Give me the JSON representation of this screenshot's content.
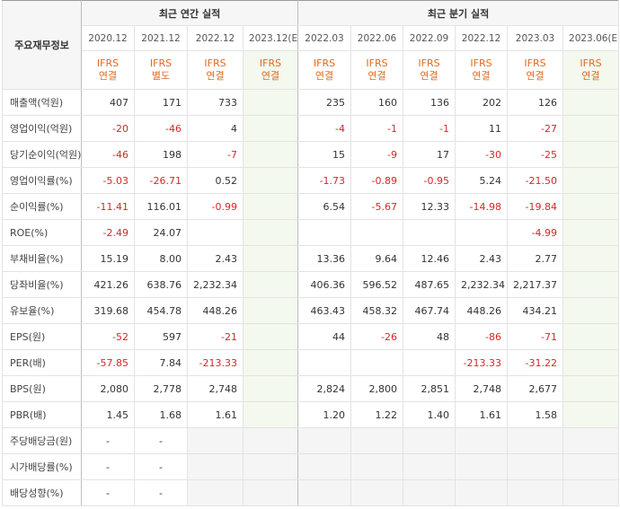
{
  "header": {
    "row_label": "주요재무정보",
    "annual_title": "최근 연간 실적",
    "quarter_title": "최근 분기 실적",
    "annual_periods": [
      {
        "date": "2020.12",
        "l1": "IFRS",
        "l2": "연결"
      },
      {
        "date": "2021.12",
        "l1": "IFRS",
        "l2": "별도"
      },
      {
        "date": "2022.12",
        "l1": "IFRS",
        "l2": "연결"
      },
      {
        "date": "2023.12(E)",
        "l1": "IFRS",
        "l2": "연결"
      }
    ],
    "quarter_periods": [
      {
        "date": "2022.03",
        "l1": "IFRS",
        "l2": "연결"
      },
      {
        "date": "2022.06",
        "l1": "IFRS",
        "l2": "연결"
      },
      {
        "date": "2022.09",
        "l1": "IFRS",
        "l2": "연결"
      },
      {
        "date": "2022.12",
        "l1": "IFRS",
        "l2": "연결"
      },
      {
        "date": "2023.03",
        "l1": "IFRS",
        "l2": "연결"
      },
      {
        "date": "2023.06(E)",
        "l1": "IFRS",
        "l2": "연결"
      }
    ]
  },
  "rows": [
    {
      "label": "매출액(억원)",
      "values": [
        "407",
        "171",
        "733",
        "",
        "235",
        "160",
        "136",
        "202",
        "126",
        ""
      ]
    },
    {
      "label": "영업이익(억원)",
      "values": [
        "-20",
        "-46",
        "4",
        "",
        "-4",
        "-1",
        "-1",
        "11",
        "-27",
        ""
      ]
    },
    {
      "label": "당기순이익(억원)",
      "values": [
        "-46",
        "198",
        "-7",
        "",
        "15",
        "-9",
        "17",
        "-30",
        "-25",
        ""
      ]
    },
    {
      "label": "영업이익률(%)",
      "values": [
        "-5.03",
        "-26.71",
        "0.52",
        "",
        "-1.73",
        "-0.89",
        "-0.95",
        "5.24",
        "-21.50",
        ""
      ]
    },
    {
      "label": "순이익률(%)",
      "values": [
        "-11.41",
        "116.01",
        "-0.99",
        "",
        "6.54",
        "-5.67",
        "12.33",
        "-14.98",
        "-19.84",
        ""
      ]
    },
    {
      "label": "ROE(%)",
      "values": [
        "-2.49",
        "24.07",
        "",
        "",
        "",
        "",
        "",
        "",
        "-4.99",
        ""
      ]
    },
    {
      "label": "부채비율(%)",
      "values": [
        "15.19",
        "8.00",
        "2.43",
        "",
        "13.36",
        "9.64",
        "12.46",
        "2.43",
        "2.77",
        ""
      ]
    },
    {
      "label": "당좌비율(%)",
      "values": [
        "421.26",
        "638.76",
        "2,232.34",
        "",
        "406.36",
        "596.52",
        "487.65",
        "2,232.34",
        "2,217.37",
        ""
      ]
    },
    {
      "label": "유보율(%)",
      "values": [
        "319.68",
        "454.78",
        "448.26",
        "",
        "463.43",
        "458.32",
        "467.74",
        "448.26",
        "434.21",
        ""
      ]
    },
    {
      "label": "EPS(원)",
      "values": [
        "-52",
        "597",
        "-21",
        "",
        "44",
        "-26",
        "48",
        "-86",
        "-71",
        ""
      ]
    },
    {
      "label": "PER(배)",
      "values": [
        "-57.85",
        "7.84",
        "-213.33",
        "",
        "",
        "",
        "",
        "-213.33",
        "-31.22",
        ""
      ]
    },
    {
      "label": "BPS(원)",
      "values": [
        "2,080",
        "2,778",
        "2,748",
        "",
        "2,824",
        "2,800",
        "2,851",
        "2,748",
        "2,677",
        ""
      ]
    },
    {
      "label": "PBR(배)",
      "values": [
        "1.45",
        "1.68",
        "1.61",
        "",
        "1.20",
        "1.22",
        "1.40",
        "1.61",
        "1.58",
        ""
      ]
    },
    {
      "label": "주당배당금(원)",
      "values": [
        "-",
        "-",
        "",
        "",
        "",
        "",
        "",
        "",
        "",
        ""
      ]
    },
    {
      "label": "시가배당률(%)",
      "values": [
        "-",
        "-",
        "",
        "",
        "",
        "",
        "",
        "",
        "",
        ""
      ]
    },
    {
      "label": "배당성향(%)",
      "values": [
        "-",
        "-",
        "",
        "",
        "",
        "",
        "",
        "",
        "",
        ""
      ]
    }
  ],
  "colors": {
    "negative": "#d6262c",
    "ifrs": "#e06a1f",
    "estimate_bg": "#f3f9ee",
    "estimate_date": "#2f8a3a"
  }
}
